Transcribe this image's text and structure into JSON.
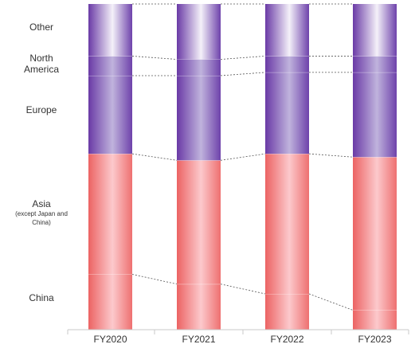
{
  "chart_data": {
    "type": "bar",
    "stacked": true,
    "normalized": true,
    "categories": [
      "FY2020",
      "FY2021",
      "FY2022",
      "FY2023"
    ],
    "series": [
      {
        "name": "China",
        "values": [
          17,
          14,
          11,
          6
        ]
      },
      {
        "name": "Asia (except Japan and China)",
        "values": [
          37,
          38,
          43,
          47
        ]
      },
      {
        "name": "Europe",
        "values": [
          24,
          26,
          25,
          26
        ]
      },
      {
        "name": "North America",
        "values": [
          6,
          5,
          5,
          5
        ]
      },
      {
        "name": "Other",
        "values": [
          16,
          17,
          16,
          16
        ]
      }
    ],
    "ylim": [
      0,
      100
    ],
    "grid": false,
    "legend": "left"
  },
  "labels": {
    "other": "Other",
    "north_america_line1": "North",
    "north_america_line2": "America",
    "europe": "Europe",
    "asia_line1": "Asia",
    "asia_line2": "(except Japan and",
    "asia_line3": "China)",
    "china": "China"
  },
  "colors": {
    "red_edge": "#ee6b6b",
    "red_center": "#fbc2c5",
    "purple_edge": "#6c3fa8",
    "purple_center": "#c2b6df",
    "purple_top_center": "#f2eef8"
  }
}
